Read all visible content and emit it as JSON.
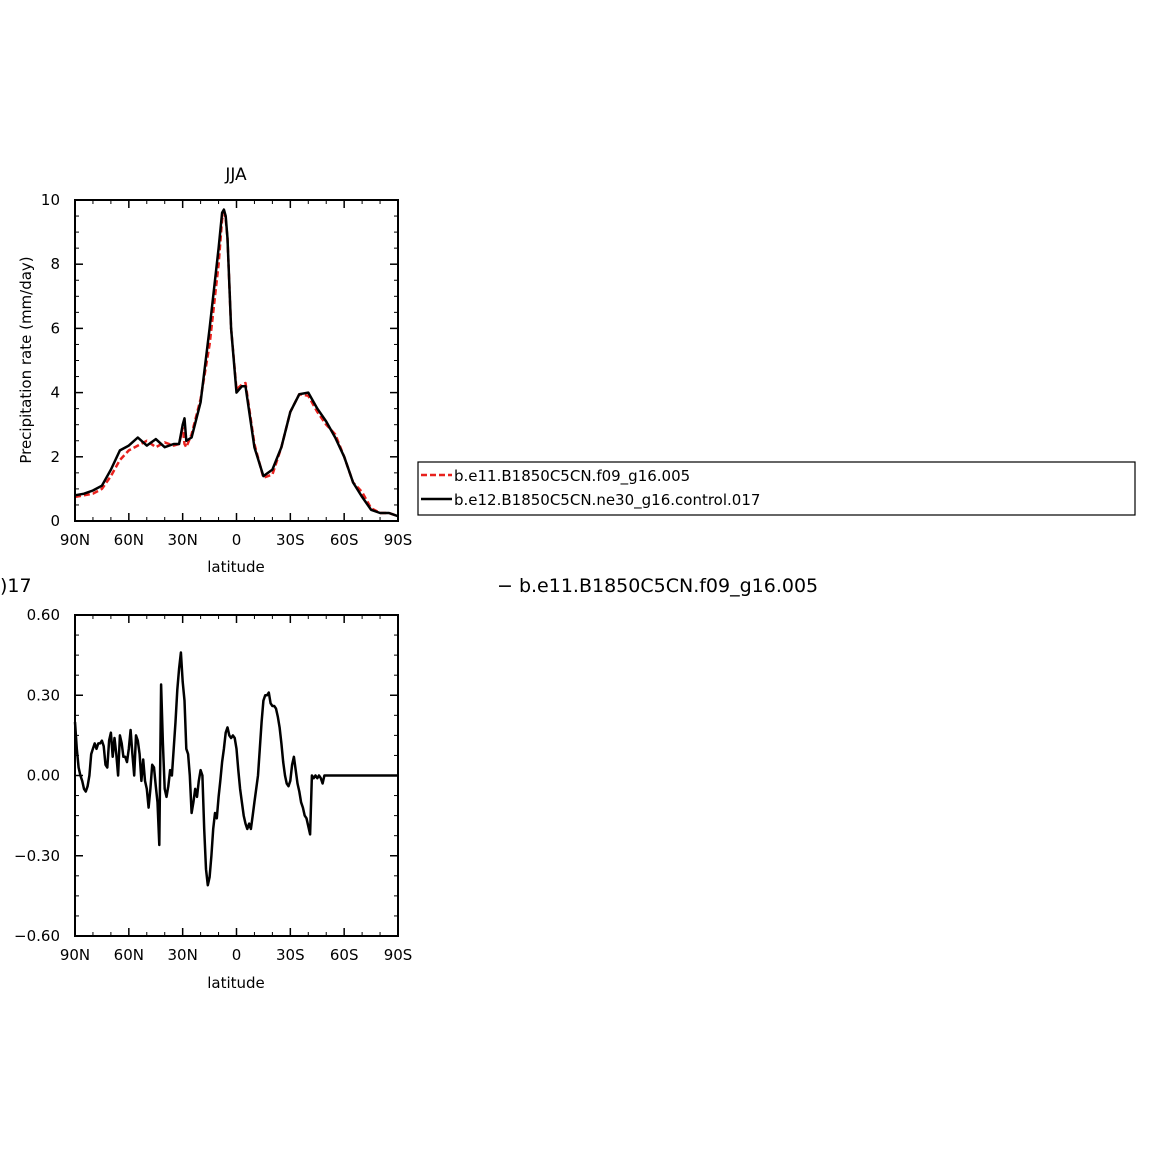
{
  "colors": {
    "series_a": "#e8211d",
    "series_b": "#000000"
  },
  "chart_data": [
    {
      "type": "line",
      "title": "JJA",
      "xlabel": "latitude",
      "ylabel": "Precipitation rate (mm/day)",
      "xlim": [
        90,
        -90
      ],
      "ylim": [
        0,
        10
      ],
      "xticks": [
        90,
        60,
        30,
        0,
        -30,
        -60,
        -90
      ],
      "xtick_labels": [
        "90N",
        "60N",
        "30N",
        "0",
        "30S",
        "60S",
        "90S"
      ],
      "yticks": [
        0,
        2,
        4,
        6,
        8,
        10
      ],
      "ytick_labels": [
        "0",
        "2",
        "4",
        "6",
        "8",
        "10"
      ],
      "legend": "right",
      "series": [
        {
          "name": "b.e11.B1850C5CN.f09_g16.005",
          "color": "#e8211d",
          "dash": "dashed",
          "x": [
            90,
            85,
            80,
            75,
            70,
            65,
            60,
            55,
            50,
            45,
            40,
            35,
            32,
            30,
            29,
            28,
            25,
            20,
            15,
            10,
            8,
            7,
            6,
            5,
            3,
            0,
            -3,
            -5,
            -10,
            -15,
            -20,
            -25,
            -30,
            -35,
            -40,
            -45,
            -50,
            -55,
            -60,
            -65,
            -70,
            -75,
            -80,
            -85,
            -90
          ],
          "y": [
            0.75,
            0.8,
            0.85,
            1.0,
            1.4,
            1.9,
            2.2,
            2.35,
            2.5,
            2.3,
            2.45,
            2.35,
            2.4,
            2.9,
            2.4,
            2.3,
            2.7,
            3.8,
            5.5,
            8.0,
            9.4,
            9.6,
            9.4,
            8.8,
            6.0,
            4.1,
            4.25,
            4.3,
            2.4,
            1.35,
            1.45,
            2.3,
            3.4,
            3.95,
            3.9,
            3.4,
            3.0,
            2.7,
            2.0,
            1.2,
            0.9,
            0.4,
            0.25,
            0.25,
            0.15
          ]
        },
        {
          "name": "b.e12.B1850C5CN.ne30_g16.control.017",
          "color": "#000000",
          "dash": "solid",
          "x": [
            90,
            85,
            80,
            75,
            70,
            65,
            60,
            55,
            50,
            45,
            40,
            35,
            32,
            30,
            29,
            28,
            25,
            20,
            15,
            10,
            8,
            7,
            6,
            5,
            3,
            0,
            -3,
            -5,
            -10,
            -15,
            -20,
            -25,
            -30,
            -35,
            -40,
            -45,
            -50,
            -55,
            -60,
            -65,
            -70,
            -75,
            -80,
            -85,
            -90
          ],
          "y": [
            0.8,
            0.85,
            0.95,
            1.1,
            1.6,
            2.2,
            2.35,
            2.6,
            2.35,
            2.55,
            2.3,
            2.4,
            2.4,
            3.0,
            3.2,
            2.5,
            2.6,
            3.7,
            6.0,
            8.5,
            9.6,
            9.7,
            9.5,
            8.8,
            6.0,
            4.0,
            4.2,
            4.2,
            2.3,
            1.4,
            1.6,
            2.3,
            3.4,
            3.95,
            4.0,
            3.5,
            3.1,
            2.6,
            2.0,
            1.2,
            0.75,
            0.35,
            0.25,
            0.25,
            0.15
          ]
        }
      ]
    },
    {
      "type": "line",
      "title": "",
      "xlabel": "latitude",
      "ylabel": "",
      "xlim": [
        90,
        -90
      ],
      "ylim": [
        -0.6,
        0.6
      ],
      "xticks": [
        90,
        60,
        30,
        0,
        -30,
        -60,
        -90
      ],
      "xtick_labels": [
        "90N",
        "60N",
        "30N",
        "0",
        "30S",
        "60S",
        "90S"
      ],
      "yticks": [
        0.6,
        0.3,
        0,
        -0.3,
        -0.6
      ],
      "ytick_labels": [
        "0.60",
        "0.30",
        "0.00",
        "−0.30",
        "−0.60"
      ],
      "series": [
        {
          "color": "#000000",
          "x": [
            90,
            89,
            88,
            87,
            86,
            85,
            84,
            83,
            82,
            81,
            80,
            79,
            78,
            77,
            76,
            75,
            74,
            73,
            72,
            71,
            70,
            69,
            68,
            67,
            66,
            65,
            64,
            63,
            62,
            61,
            60,
            59,
            58,
            57,
            56,
            55,
            54,
            53,
            52,
            51,
            50,
            49,
            48,
            47,
            46,
            45,
            44,
            43,
            42,
            41,
            40,
            39,
            38,
            37,
            36,
            35,
            34,
            33,
            32,
            31,
            30,
            29,
            28,
            27,
            26,
            25,
            24,
            23,
            22,
            21,
            20,
            19,
            18,
            17,
            16,
            15,
            14,
            13,
            12,
            11,
            10,
            9,
            8,
            7,
            6,
            5,
            4,
            3,
            2,
            1,
            0,
            -1,
            -2,
            -3,
            -4,
            -5,
            -6,
            -7,
            -8,
            -9,
            -10,
            -11,
            -12,
            -13,
            -14,
            -15,
            -16,
            -17,
            -18,
            -19,
            -20,
            -21,
            -22,
            -23,
            -24,
            -25,
            -26,
            -27,
            -28,
            -29,
            -30,
            -31,
            -32,
            -33,
            -34,
            -35,
            -36,
            -37,
            -38,
            -39,
            -40,
            -41,
            -42,
            -43,
            -44,
            -45,
            -46,
            -47,
            -48,
            -49,
            -50,
            -51,
            -52,
            -53,
            -54,
            -55,
            -56,
            -57,
            -58,
            -59,
            -60,
            -61,
            -62,
            -63,
            -64,
            -65,
            -66,
            -67,
            -68,
            -69,
            -70,
            -71,
            -72,
            -73,
            -74,
            -75,
            -76,
            -77,
            -78,
            -79,
            -80,
            -81,
            -82,
            -83,
            -84,
            -85,
            -86,
            -87,
            -88,
            -89,
            -90
          ],
          "y": [
            0.2,
            0.1,
            0.03,
            0.0,
            -0.02,
            -0.05,
            -0.06,
            -0.04,
            0.0,
            0.08,
            0.1,
            0.12,
            0.1,
            0.12,
            0.12,
            0.13,
            0.11,
            0.04,
            0.03,
            0.13,
            0.16,
            0.07,
            0.14,
            0.08,
            0.0,
            0.15,
            0.12,
            0.07,
            0.07,
            0.05,
            0.1,
            0.17,
            0.08,
            0.0,
            0.15,
            0.13,
            0.08,
            -0.02,
            0.06,
            -0.02,
            -0.05,
            -0.12,
            -0.05,
            0.04,
            0.03,
            -0.04,
            -0.1,
            -0.26,
            0.34,
            0.12,
            -0.05,
            -0.08,
            -0.04,
            0.02,
            0.0,
            0.1,
            0.2,
            0.32,
            0.4,
            0.46,
            0.35,
            0.28,
            0.1,
            0.08,
            0.0,
            -0.14,
            -0.1,
            -0.05,
            -0.08,
            -0.02,
            0.02,
            0.0,
            -0.2,
            -0.35,
            -0.41,
            -0.38,
            -0.3,
            -0.2,
            -0.14,
            -0.16,
            -0.08,
            -0.02,
            0.05,
            0.1,
            0.16,
            0.18,
            0.15,
            0.14,
            0.15,
            0.14,
            0.1,
            0.02,
            -0.05,
            -0.1,
            -0.15,
            -0.18,
            -0.2,
            -0.18,
            -0.2,
            -0.15,
            -0.1,
            -0.05,
            0.0,
            0.1,
            0.2,
            0.28,
            0.3,
            0.3,
            0.31,
            0.27,
            0.26,
            0.26,
            0.25,
            0.22,
            0.18,
            0.12,
            0.05,
            0.0,
            -0.03,
            -0.04,
            -0.02,
            0.04,
            0.07,
            0.02,
            -0.03,
            -0.06,
            -0.1,
            -0.12,
            -0.15,
            -0.16,
            -0.19,
            -0.22,
            0.0,
            -0.01,
            0.0,
            -0.01,
            0.0,
            -0.01,
            -0.03,
            0.0,
            0.0,
            0.0,
            0.0,
            0.0,
            0.0,
            0.0,
            0.0,
            0.0,
            0.0,
            0.0,
            0.0,
            0.0,
            0.0,
            0.0,
            0.0,
            0.0,
            0.0,
            0.0,
            0.0,
            0.0,
            0.0,
            0.0,
            0.0,
            0.0,
            0.0,
            0.0,
            0.0,
            0.0,
            0.0,
            0.0,
            0.0,
            0.0,
            0.0,
            0.0,
            0.0,
            0.0,
            0.0,
            0.0,
            0.0,
            0.0,
            0.0
          ]
        }
      ]
    }
  ],
  "texts": {
    "clipped_left": ")17",
    "clipped_right": "− b.e11.B1850C5CN.f09_g16.005"
  }
}
